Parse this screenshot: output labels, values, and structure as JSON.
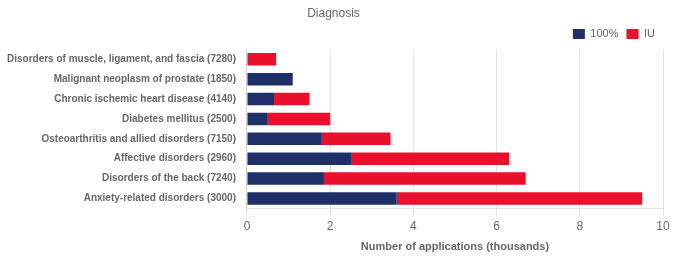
{
  "chart_data": {
    "type": "bar",
    "orientation": "horizontal",
    "stacked": true,
    "title": "Diagnosis",
    "xlabel": "Number of applications (thousands)",
    "categories": [
      "Disorders of muscle, ligament, and fascia (7280)",
      "Malignant neoplasm of prostate (1850)",
      "Chronic ischemic heart disease (4140)",
      "Diabetes mellitus (2500)",
      "Osteoarthritis and allied disorders (7150)",
      "Affective disorders (2960)",
      "Disorders of the back (7240)",
      "Anxiety-related disorders (3000)"
    ],
    "series": [
      {
        "name": "100%",
        "color": "#1f3068",
        "values": [
          0.0,
          1.1,
          0.65,
          0.5,
          1.8,
          2.5,
          1.85,
          3.6
        ]
      },
      {
        "name": "IU",
        "color": "#e8102a",
        "values": [
          0.7,
          0.0,
          0.85,
          1.5,
          1.65,
          3.8,
          4.85,
          5.9
        ]
      }
    ],
    "xlim": [
      0,
      10
    ],
    "xticks": [
      0,
      2,
      4,
      6,
      8,
      10
    ],
    "grid": true,
    "legend": "upper right"
  }
}
